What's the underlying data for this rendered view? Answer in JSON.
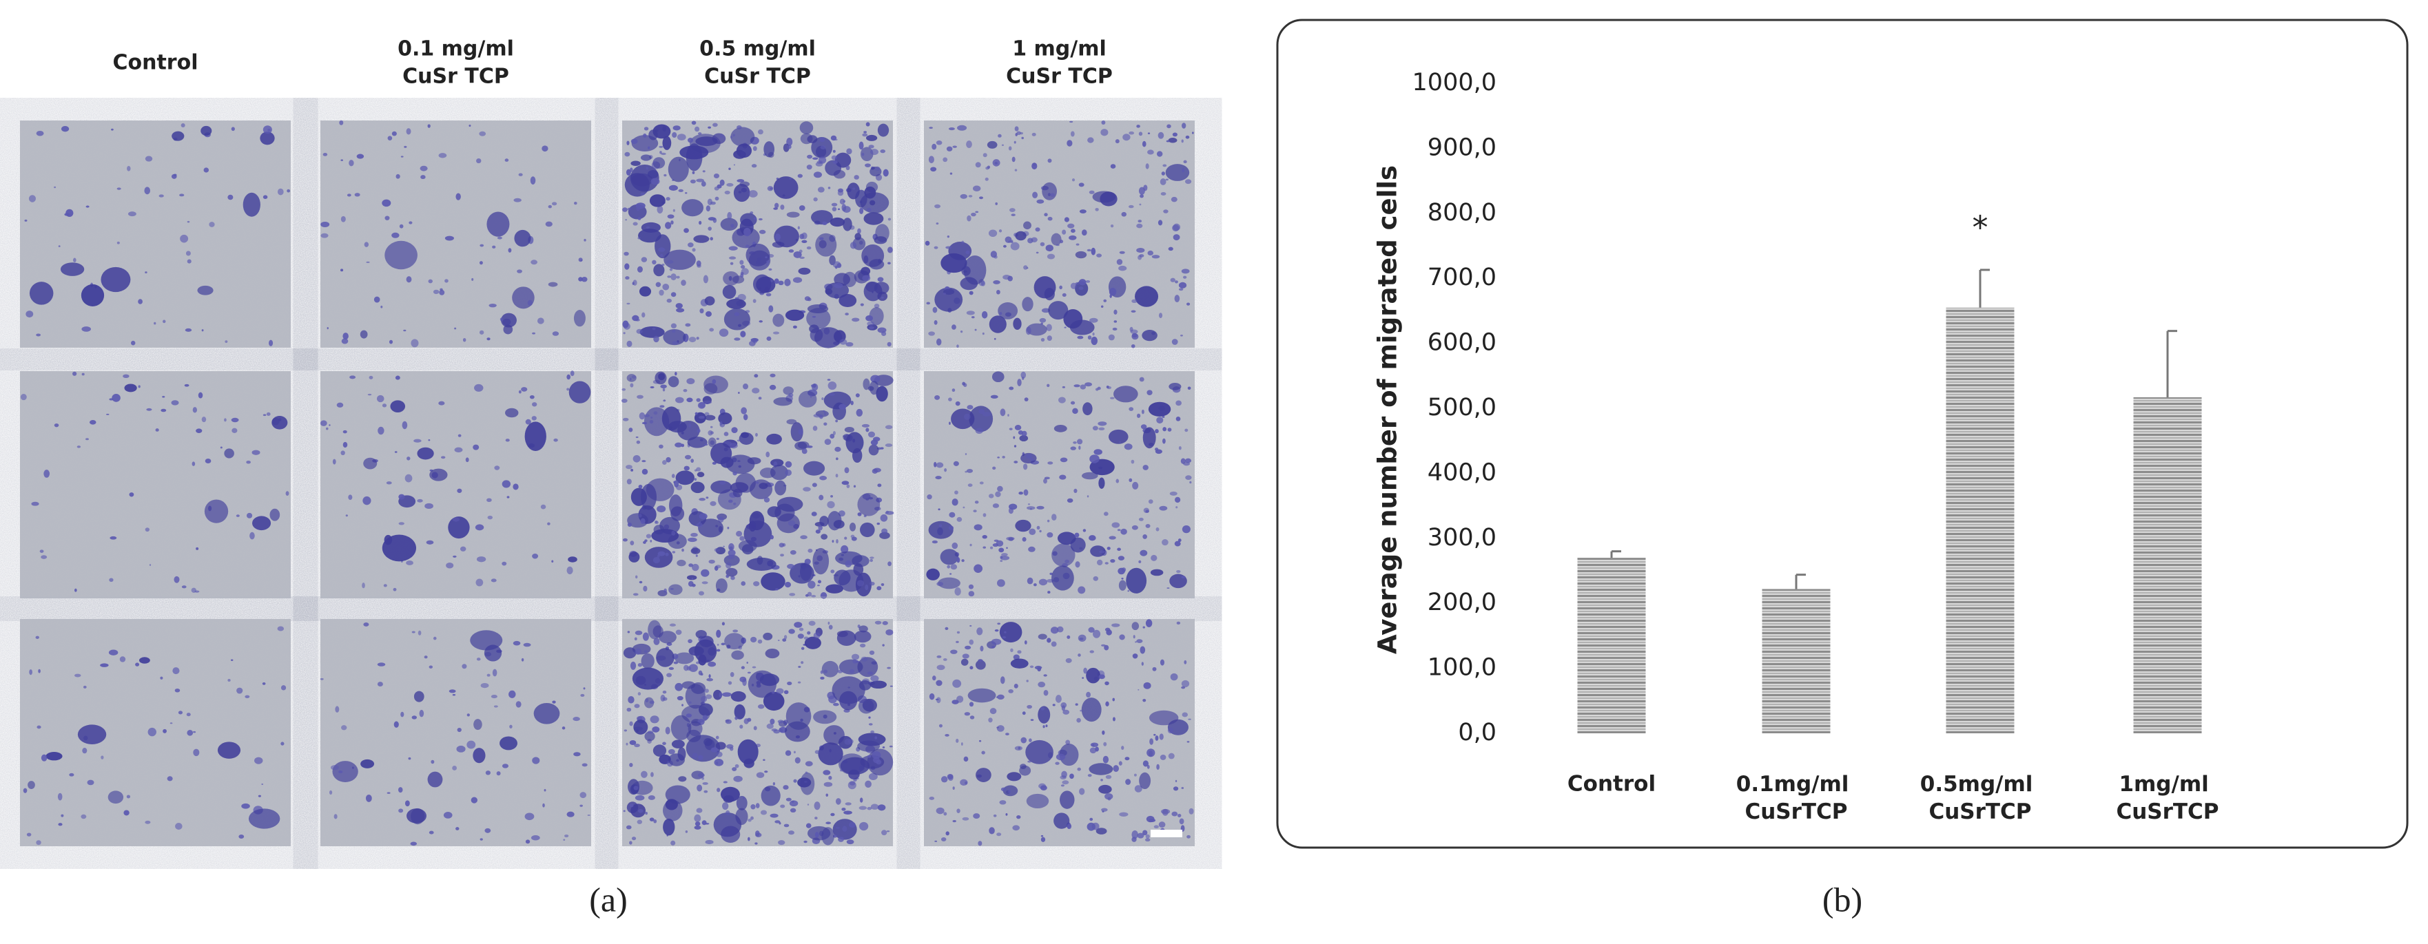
{
  "panel_a": {
    "column_headers": [
      [
        "Control"
      ],
      [
        "0.1 mg/ml",
        "CuSr TCP"
      ],
      [
        "0.5 mg/ml",
        "CuSr TCP"
      ],
      [
        "1 mg/ml",
        "CuSr TCP"
      ]
    ],
    "label": "(a)"
  },
  "panel_b_label": "(b)",
  "chart_data": {
    "type": "bar",
    "y_label": "Average number of migrated cells",
    "categories": [
      "Control",
      "0.1mg/ml CuSrTCP",
      "0.5mg/ml CuSrTCP",
      "1mg/ml CuSrTCP"
    ],
    "values": [
      270,
      222,
      655,
      517
    ],
    "errors": [
      10,
      22,
      58,
      102
    ],
    "annotation": "*",
    "ylim": [
      0,
      1000
    ],
    "yticks": [
      {
        "value": 0,
        "label": "0,0"
      },
      {
        "value": 100,
        "label": "100,0"
      },
      {
        "value": 200,
        "label": "200,0"
      },
      {
        "value": 300,
        "label": "300,0"
      },
      {
        "value": 400,
        "label": "400,0"
      },
      {
        "value": 500,
        "label": "500,0"
      },
      {
        "value": 600,
        "label": "600,0"
      },
      {
        "value": 700,
        "label": "700,0"
      },
      {
        "value": 800,
        "label": "800,0"
      },
      {
        "value": 900,
        "label": "900,0"
      },
      {
        "value": 1000,
        "label": "1000,0"
      }
    ],
    "grid": false
  }
}
